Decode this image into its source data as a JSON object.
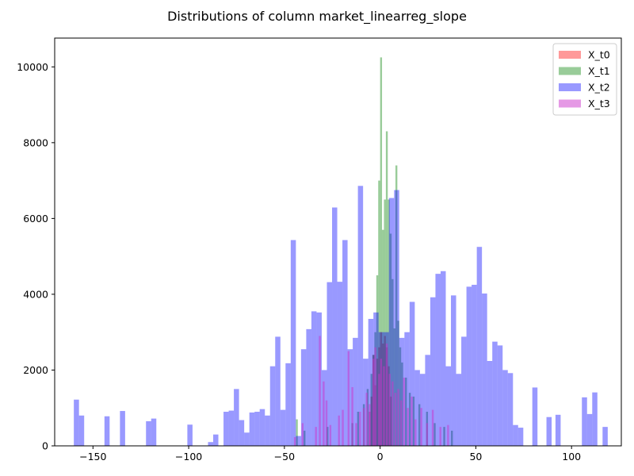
{
  "chart_data": {
    "type": "histogram",
    "title": "Distributions of column market_linearreg_slope",
    "xlabel": "",
    "ylabel": "",
    "xlim": [
      -170,
      126
    ],
    "ylim": [
      0,
      10760
    ],
    "x_ticks": [
      -150,
      -100,
      -50,
      0,
      50,
      100
    ],
    "y_ticks": [
      0,
      2000,
      4000,
      6000,
      8000,
      10000
    ],
    "legend_position": "top-right",
    "series": [
      {
        "name": "X_t0",
        "color": "#ff0000",
        "alpha": 0.4,
        "bins": [
          [
            -6.0,
            -5.0,
            900
          ],
          [
            -5.0,
            -4.0,
            1300
          ],
          [
            -4.0,
            -3.0,
            2400
          ],
          [
            -3.0,
            -2.0,
            1600
          ],
          [
            -2.0,
            -1.0,
            2300
          ],
          [
            -1.0,
            0.0,
            2600
          ],
          [
            0.0,
            1.0,
            3000
          ],
          [
            1.0,
            2.0,
            2700
          ],
          [
            2.0,
            3.0,
            2900
          ],
          [
            3.0,
            4.0,
            2600
          ],
          [
            4.0,
            5.0,
            2100
          ],
          [
            5.0,
            6.0,
            1300
          ]
        ]
      },
      {
        "name": "X_t1",
        "color": "#008000",
        "alpha": 0.4,
        "bins": [
          [
            -44.0,
            -43.0,
            700
          ],
          [
            -40.0,
            -39.0,
            400
          ],
          [
            -28.0,
            -27.0,
            500
          ],
          [
            -15.0,
            -14.0,
            600
          ],
          [
            -12.0,
            -11.0,
            900
          ],
          [
            -9.0,
            -8.0,
            1100
          ],
          [
            -7.0,
            -6.0,
            1500
          ],
          [
            -5.0,
            -4.0,
            1900
          ],
          [
            -4.0,
            -3.0,
            2400
          ],
          [
            -3.0,
            -2.0,
            3000
          ],
          [
            -2.0,
            -1.0,
            4500
          ],
          [
            -1.0,
            0.0,
            7000
          ],
          [
            0.0,
            1.0,
            10250
          ],
          [
            1.0,
            2.0,
            5700
          ],
          [
            2.0,
            3.0,
            6500
          ],
          [
            3.0,
            4.0,
            8300
          ],
          [
            4.0,
            5.0,
            6500
          ],
          [
            5.0,
            6.0,
            5600
          ],
          [
            6.0,
            7.0,
            4400
          ],
          [
            7.0,
            8.0,
            3100
          ],
          [
            8.0,
            9.0,
            7400
          ],
          [
            9.0,
            10.0,
            3300
          ],
          [
            10.0,
            11.0,
            2600
          ],
          [
            11.0,
            12.0,
            2200
          ],
          [
            13.0,
            14.0,
            1800
          ],
          [
            15.0,
            16.0,
            1400
          ],
          [
            17.0,
            18.0,
            1300
          ],
          [
            20.0,
            21.0,
            1100
          ],
          [
            24.0,
            25.0,
            900
          ],
          [
            28.0,
            29.0,
            600
          ],
          [
            33.0,
            34.0,
            500
          ],
          [
            37.0,
            38.0,
            400
          ]
        ]
      },
      {
        "name": "X_t2",
        "color": "#0000ff",
        "alpha": 0.4,
        "bins": [
          [
            -160.0,
            -157.3,
            1220
          ],
          [
            -157.3,
            -154.6,
            800
          ],
          [
            -144.0,
            -141.3,
            780
          ],
          [
            -135.9,
            -133.2,
            920
          ],
          [
            -122.3,
            -119.6,
            650
          ],
          [
            -119.6,
            -116.9,
            720
          ],
          [
            -100.7,
            -98.0,
            560
          ],
          [
            -89.9,
            -87.2,
            100
          ],
          [
            -87.2,
            -84.5,
            300
          ],
          [
            -81.8,
            -79.1,
            900
          ],
          [
            -79.1,
            -76.4,
            930
          ],
          [
            -76.4,
            -73.7,
            1500
          ],
          [
            -73.7,
            -71.0,
            680
          ],
          [
            -71.0,
            -68.3,
            350
          ],
          [
            -68.3,
            -65.6,
            880
          ],
          [
            -65.6,
            -62.9,
            900
          ],
          [
            -62.9,
            -60.2,
            970
          ],
          [
            -60.2,
            -57.5,
            800
          ],
          [
            -57.5,
            -54.8,
            2100
          ],
          [
            -54.8,
            -52.1,
            2880
          ],
          [
            -52.1,
            -49.4,
            950
          ],
          [
            -49.4,
            -46.7,
            2180
          ],
          [
            -46.7,
            -44.0,
            5430
          ],
          [
            -44.0,
            -41.3,
            260
          ],
          [
            -41.3,
            -38.6,
            2550
          ],
          [
            -38.6,
            -35.9,
            3080
          ],
          [
            -35.9,
            -33.2,
            3550
          ],
          [
            -33.2,
            -30.5,
            3520
          ],
          [
            -30.5,
            -27.8,
            2000
          ],
          [
            -27.8,
            -25.1,
            4320
          ],
          [
            -25.1,
            -22.4,
            6290
          ],
          [
            -22.4,
            -19.7,
            4330
          ],
          [
            -19.7,
            -17.0,
            5430
          ],
          [
            -17.0,
            -14.3,
            2550
          ],
          [
            -14.3,
            -11.6,
            2850
          ],
          [
            -11.6,
            -8.9,
            6860
          ],
          [
            -8.9,
            -6.2,
            2300
          ],
          [
            -6.2,
            -3.5,
            3350
          ],
          [
            -3.5,
            -0.8,
            3520
          ],
          [
            -0.8,
            1.9,
            3000
          ],
          [
            1.9,
            4.6,
            3000
          ],
          [
            4.6,
            7.3,
            6540
          ],
          [
            7.3,
            10.0,
            6750
          ],
          [
            10.0,
            12.7,
            2850
          ],
          [
            12.7,
            15.4,
            3000
          ],
          [
            15.4,
            18.1,
            3800
          ],
          [
            18.1,
            20.8,
            2000
          ],
          [
            20.8,
            23.5,
            1900
          ],
          [
            23.5,
            26.2,
            2400
          ],
          [
            26.2,
            28.9,
            3920
          ],
          [
            28.9,
            31.6,
            4540
          ],
          [
            31.6,
            34.3,
            4610
          ],
          [
            34.3,
            37.0,
            2100
          ],
          [
            37.0,
            39.7,
            3970
          ],
          [
            39.7,
            42.4,
            1900
          ],
          [
            42.4,
            45.1,
            2880
          ],
          [
            45.1,
            47.8,
            4200
          ],
          [
            47.8,
            50.5,
            4250
          ],
          [
            50.5,
            53.2,
            5250
          ],
          [
            53.2,
            55.9,
            4020
          ],
          [
            55.9,
            58.6,
            2240
          ],
          [
            58.6,
            61.3,
            2750
          ],
          [
            61.3,
            64.0,
            2650
          ],
          [
            64.0,
            66.7,
            2000
          ],
          [
            66.7,
            69.4,
            1920
          ],
          [
            69.4,
            72.1,
            550
          ],
          [
            72.1,
            74.8,
            480
          ],
          [
            79.5,
            82.2,
            1540
          ],
          [
            86.9,
            89.6,
            760
          ],
          [
            91.6,
            94.3,
            820
          ],
          [
            105.4,
            108.1,
            1280
          ],
          [
            108.1,
            110.8,
            840
          ],
          [
            110.8,
            113.5,
            1410
          ],
          [
            116.2,
            118.9,
            500
          ]
        ]
      },
      {
        "name": "X_t3",
        "color": "#cc33cc",
        "alpha": 0.5,
        "bins": [
          [
            -45.0,
            -44.0,
            230
          ],
          [
            -41.0,
            -40.0,
            600
          ],
          [
            -34.0,
            -33.0,
            500
          ],
          [
            -32.0,
            -31.0,
            2900
          ],
          [
            -30.0,
            -29.0,
            1700
          ],
          [
            -28.5,
            -27.5,
            1200
          ],
          [
            -26.5,
            -25.5,
            550
          ],
          [
            -22.0,
            -21.0,
            800
          ],
          [
            -20.0,
            -19.0,
            950
          ],
          [
            -17.0,
            -16.0,
            2500
          ],
          [
            -15.0,
            -14.0,
            1550
          ],
          [
            -13.0,
            -12.0,
            600
          ],
          [
            -11.0,
            -10.0,
            900
          ],
          [
            -9.0,
            -8.0,
            1000
          ],
          [
            -7.5,
            -6.5,
            1400
          ],
          [
            -6.0,
            -5.0,
            1100
          ],
          [
            -4.0,
            -3.0,
            2300
          ],
          [
            -3.0,
            -2.0,
            2600
          ],
          [
            -1.0,
            0.0,
            1900
          ],
          [
            0.0,
            1.0,
            2300
          ],
          [
            1.5,
            2.5,
            2100
          ],
          [
            3.0,
            4.0,
            2700
          ],
          [
            4.5,
            5.5,
            1900
          ],
          [
            6.0,
            7.0,
            1700
          ],
          [
            7.5,
            8.5,
            1400
          ],
          [
            9.0,
            10.0,
            1500
          ],
          [
            10.5,
            11.5,
            1200
          ],
          [
            12.0,
            13.0,
            1800
          ],
          [
            14.0,
            15.0,
            1000
          ],
          [
            16.0,
            17.0,
            1300
          ],
          [
            18.0,
            19.0,
            700
          ],
          [
            21.0,
            22.0,
            1000
          ],
          [
            24.0,
            25.0,
            600
          ],
          [
            27.0,
            28.0,
            950
          ],
          [
            31.0,
            32.0,
            500
          ],
          [
            35.0,
            36.0,
            550
          ]
        ]
      }
    ]
  }
}
